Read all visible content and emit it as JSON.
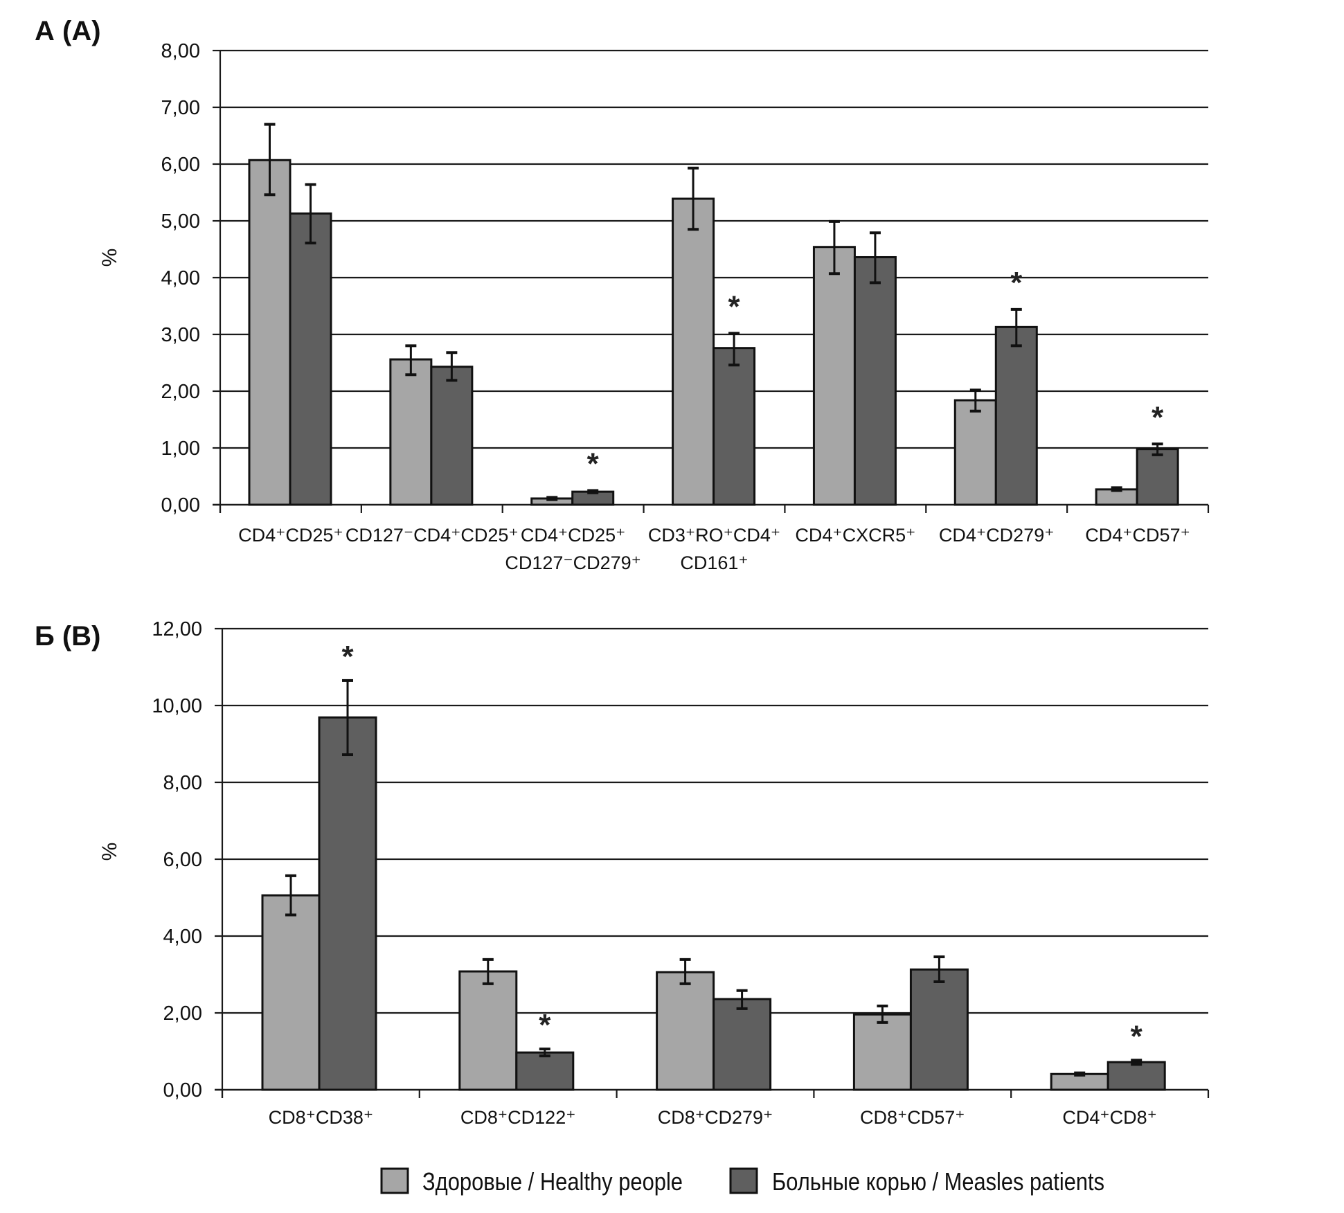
{
  "colors": {
    "healthy": "#a6a6a6",
    "patients": "#5f5f5f",
    "stroke": "#111111"
  },
  "legend": {
    "healthy": "Здоровые / Healthy people",
    "patients": "Больные корью / Measles patients"
  },
  "chart_data": [
    {
      "type": "bar",
      "panel_label": "А (A)",
      "ylabel": "%",
      "ylim": [
        0,
        8
      ],
      "yticks": [
        "0,00",
        "1,00",
        "2,00",
        "3,00",
        "4,00",
        "5,00",
        "6,00",
        "7,00",
        "8,00"
      ],
      "ytick_values": [
        0,
        1,
        2,
        3,
        4,
        5,
        6,
        7,
        8
      ],
      "grid": true,
      "categories": [
        [
          "CD4⁺CD25⁺"
        ],
        [
          "CD127⁻CD4⁺CD25⁺"
        ],
        [
          "CD4⁺CD25⁺",
          "CD127⁻CD279⁺"
        ],
        [
          "CD3⁺RO⁺CD4⁺",
          "CD161⁺"
        ],
        [
          "CD4⁺CXCR5⁺"
        ],
        [
          "CD4⁺CD279⁺"
        ],
        [
          "CD4⁺CD57⁺"
        ]
      ],
      "series": [
        {
          "name": "Здоровые / Healthy people",
          "values": [
            6.07,
            2.56,
            0.11,
            5.39,
            4.54,
            1.84,
            0.27
          ],
          "err_low": [
            5.46,
            2.29,
            0.09,
            4.85,
            4.07,
            1.65,
            0.25
          ],
          "err_high": [
            6.7,
            2.8,
            0.13,
            5.93,
            4.99,
            2.02,
            0.3
          ]
        },
        {
          "name": "Больные корью / Measles patients",
          "values": [
            5.13,
            2.43,
            0.23,
            2.76,
            4.36,
            3.13,
            0.98
          ],
          "err_low": [
            4.61,
            2.19,
            0.21,
            2.46,
            3.91,
            2.8,
            0.88
          ],
          "err_high": [
            5.64,
            2.68,
            0.25,
            3.02,
            4.79,
            3.44,
            1.07
          ]
        }
      ],
      "significant": [
        false,
        false,
        true,
        true,
        false,
        true,
        true
      ],
      "annotation": "*"
    },
    {
      "type": "bar",
      "panel_label": "Б (B)",
      "ylabel": "%",
      "ylim": [
        0,
        12
      ],
      "yticks": [
        "0,00",
        "2,00",
        "4,00",
        "6,00",
        "8,00",
        "10,00",
        "12,00"
      ],
      "ytick_values": [
        0,
        2,
        4,
        6,
        8,
        10,
        12
      ],
      "grid": true,
      "categories": [
        [
          "CD8⁺CD38⁺"
        ],
        [
          "CD8⁺CD122⁺"
        ],
        [
          "CD8⁺CD279⁺"
        ],
        [
          "CD8⁺CD57⁺"
        ],
        [
          "CD4⁺CD8⁺"
        ]
      ],
      "series": [
        {
          "name": "Здоровые / Healthy people",
          "values": [
            5.06,
            3.08,
            3.06,
            1.96,
            0.41
          ],
          "err_low": [
            4.55,
            2.76,
            2.76,
            1.75,
            0.38
          ],
          "err_high": [
            5.57,
            3.39,
            3.39,
            2.18,
            0.44
          ]
        },
        {
          "name": "Больные корью / Measles patients",
          "values": [
            9.69,
            0.97,
            2.36,
            3.13,
            0.72
          ],
          "err_low": [
            8.72,
            0.88,
            2.11,
            2.81,
            0.66
          ],
          "err_high": [
            10.65,
            1.06,
            2.58,
            3.46,
            0.77
          ]
        }
      ],
      "significant": [
        true,
        true,
        false,
        false,
        true
      ],
      "annotation": "*"
    }
  ]
}
